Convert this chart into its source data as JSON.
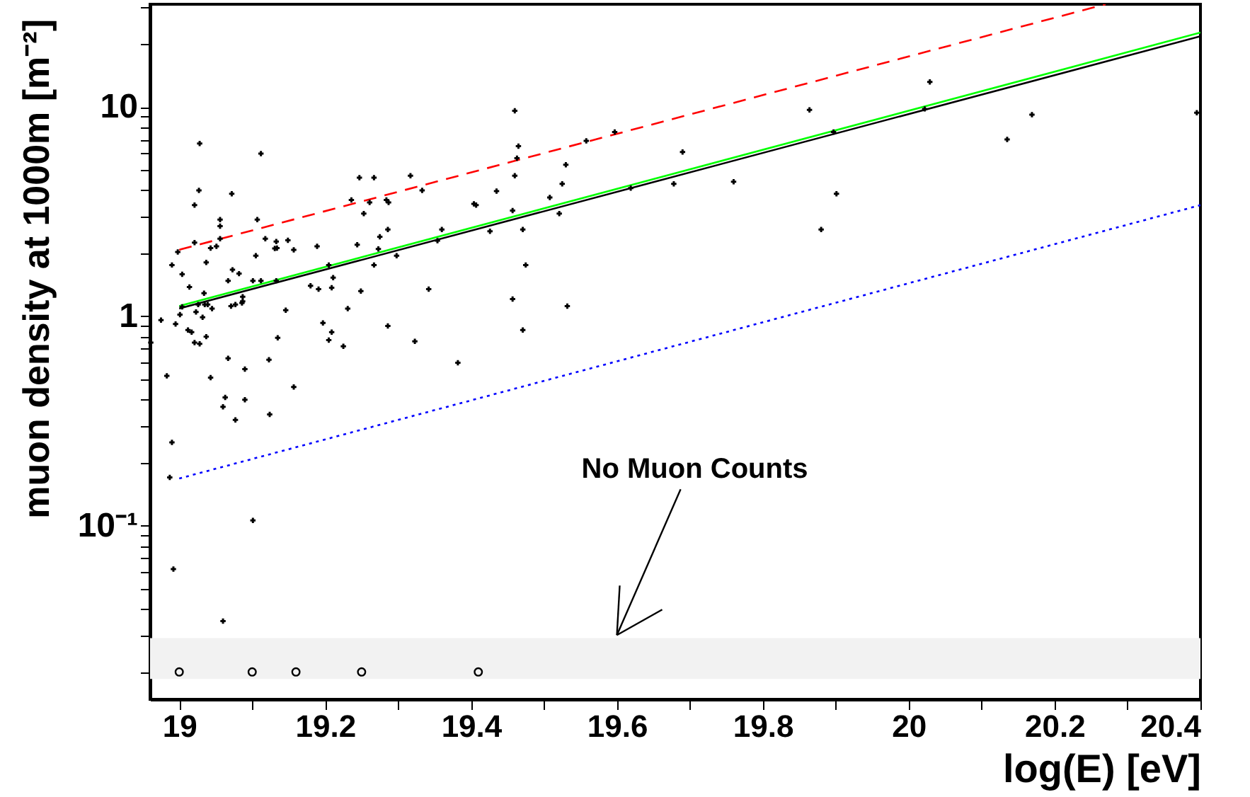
{
  "chart_data": {
    "type": "scatter",
    "xlabel": "log(E) [eV]",
    "ylabel": "muon density at 1000m [m⁻²]",
    "log": "y",
    "grid": false,
    "xlim": [
      18.96,
      20.4
    ],
    "ylim": [
      0.0148,
      31
    ],
    "xticks": [
      19,
      {
        "value": 19.1,
        "label": null
      },
      19.2,
      {
        "value": 19.3,
        "label": null
      },
      19.4,
      {
        "value": 19.5,
        "label": null
      },
      19.6,
      {
        "value": 19.7,
        "label": null
      },
      19.8,
      {
        "value": 19.9,
        "label": null
      },
      20,
      {
        "value": 20.1,
        "label": null
      },
      20.2,
      {
        "value": 20.3,
        "label": null
      },
      20.4
    ],
    "yticks": [
      {
        "value": 0.02,
        "label": null
      },
      {
        "value": 0.03,
        "label": null
      },
      {
        "value": 0.04,
        "label": null
      },
      {
        "value": 0.05,
        "label": null
      },
      {
        "value": 0.06,
        "label": null
      },
      {
        "value": 0.07,
        "label": null
      },
      {
        "value": 0.08,
        "label": null
      },
      {
        "value": 0.09,
        "label": null
      },
      {
        "value": 0.1,
        "label": "10⁻¹"
      },
      {
        "value": 0.2,
        "label": null
      },
      {
        "value": 0.3,
        "label": null
      },
      {
        "value": 0.4,
        "label": null
      },
      {
        "value": 0.5,
        "label": null
      },
      {
        "value": 0.6,
        "label": null
      },
      {
        "value": 0.7,
        "label": null
      },
      {
        "value": 0.8,
        "label": null
      },
      {
        "value": 0.9,
        "label": null
      },
      1,
      {
        "value": 2,
        "label": null
      },
      {
        "value": 3,
        "label": null
      },
      {
        "value": 4,
        "label": null
      },
      {
        "value": 5,
        "label": null
      },
      {
        "value": 6,
        "label": null
      },
      {
        "value": 7,
        "label": null
      },
      {
        "value": 8,
        "label": null
      },
      {
        "value": 9,
        "label": null
      },
      10,
      {
        "value": 20,
        "label": null
      },
      {
        "value": 30,
        "label": null
      }
    ],
    "bands": [
      {
        "axis": "y",
        "from": 0.0185,
        "to": 0.029,
        "color": "#f2f2f2"
      }
    ],
    "annotations": [
      {
        "text": "No Muon Counts",
        "x": 19.6,
        "y": 0.03
      }
    ],
    "series": [
      {
        "type": "line",
        "color": "#00ff00",
        "line_style": "solid",
        "x": [
          19,
          20.4
        ],
        "values": [
          1.12,
          22.7
        ]
      },
      {
        "type": "line",
        "color": "#000000",
        "line_style": "solid",
        "x": [
          19,
          20.4
        ],
        "values": [
          1.09,
          21.8
        ]
      },
      {
        "type": "line",
        "color": "#ff0000",
        "line_style": "dashed",
        "x": [
          19,
          20.27
        ],
        "values": [
          2.08,
          31
        ]
      },
      {
        "type": "line",
        "color": "#0000ff",
        "line_style": "dotted",
        "x": [
          19,
          20.4
        ],
        "values": [
          0.168,
          3.4
        ]
      },
      {
        "type": "scatter",
        "marker": "circle",
        "color": "#000000",
        "x": [
          19.0,
          19.1,
          19.16,
          19.25,
          19.41
        ],
        "values": [
          0.02,
          0.02,
          0.02,
          0.02,
          0.02
        ]
      },
      {
        "type": "scatter",
        "marker": "cross",
        "color": "#000000",
        "x": [
          19.028,
          19.112,
          19.027,
          19.072,
          19.021,
          19.056,
          19.056,
          19.107,
          19.021,
          19.056,
          19.118,
          19.133,
          19.149,
          19.043,
          19.051,
          19.131,
          19.134,
          19.157,
          19.189,
          19.105,
          18.998,
          18.99,
          19.037,
          19.073,
          19.082,
          19.004,
          19.067,
          19.101,
          19.112,
          19.133,
          19.211,
          19.014,
          19.18,
          19.191,
          19.209,
          19.205,
          19.034,
          19.087,
          19.087,
          19.004,
          19.026,
          19.035,
          19.039,
          19.045,
          19.071,
          19.077,
          19.086,
          19.023,
          19.001,
          18.975,
          19.032,
          18.995,
          19.146,
          19.197,
          19.012,
          19.017,
          19.209,
          19.037,
          19.021,
          19.028,
          19.135,
          19.205,
          18.961,
          19.067,
          19.123,
          19.09,
          18.983,
          19.043,
          19.157,
          19.063,
          19.06,
          19.09,
          19.124,
          19.077,
          18.99,
          18.987,
          19.101,
          18.992,
          19.06,
          19.46,
          19.465,
          19.463,
          19.558,
          19.597,
          19.53,
          19.46,
          19.247,
          19.267,
          19.317,
          19.333,
          19.236,
          19.261,
          19.284,
          19.287,
          19.435,
          19.525,
          19.508,
          19.404,
          19.407,
          19.253,
          19.457,
          19.521,
          19.286,
          19.275,
          19.36,
          19.471,
          19.426,
          19.244,
          19.273,
          19.354,
          19.298,
          19.619,
          19.678,
          19.267,
          19.475,
          19.249,
          19.342,
          19.231,
          19.457,
          19.532,
          19.286,
          19.225,
          19.323,
          19.471,
          19.382,
          20.029,
          19.864,
          20.022,
          20.169,
          20.135,
          20.395,
          19.69,
          19.897,
          19.76,
          19.901,
          19.88
        ],
        "values": [
          6.7,
          6.0,
          4.0,
          3.85,
          3.4,
          2.9,
          2.7,
          2.9,
          2.25,
          2.35,
          2.35,
          2.28,
          2.31,
          2.12,
          2.16,
          2.11,
          2.12,
          2.08,
          2.16,
          1.95,
          2.03,
          1.76,
          1.81,
          1.67,
          1.6,
          1.59,
          1.48,
          1.48,
          1.48,
          1.48,
          1.53,
          1.38,
          1.4,
          1.35,
          1.37,
          1.76,
          1.29,
          1.24,
          1.18,
          1.11,
          1.14,
          1.14,
          1.14,
          1.09,
          1.12,
          1.14,
          1.16,
          1.05,
          1.02,
          0.96,
          0.99,
          0.92,
          1.07,
          0.93,
          0.86,
          0.84,
          0.84,
          0.8,
          0.75,
          0.74,
          0.79,
          0.77,
          0.75,
          0.63,
          0.62,
          0.56,
          0.52,
          0.51,
          0.46,
          0.41,
          0.37,
          0.4,
          0.34,
          0.32,
          0.25,
          0.17,
          0.106,
          0.062,
          0.035,
          9.6,
          6.5,
          5.7,
          6.9,
          7.6,
          5.3,
          4.7,
          4.6,
          4.6,
          4.7,
          4.0,
          3.6,
          3.5,
          3.6,
          3.5,
          3.97,
          4.3,
          3.7,
          3.45,
          3.4,
          3.1,
          3.2,
          3.1,
          2.6,
          2.4,
          2.6,
          2.6,
          2.55,
          2.2,
          2.1,
          2.3,
          1.95,
          4.1,
          4.3,
          1.76,
          1.76,
          1.32,
          1.35,
          1.09,
          1.21,
          1.12,
          0.9,
          0.72,
          0.76,
          0.86,
          0.6,
          13.2,
          9.7,
          9.8,
          9.2,
          7.0,
          9.4,
          6.1,
          7.6,
          4.4,
          3.85,
          2.6
        ]
      }
    ]
  }
}
